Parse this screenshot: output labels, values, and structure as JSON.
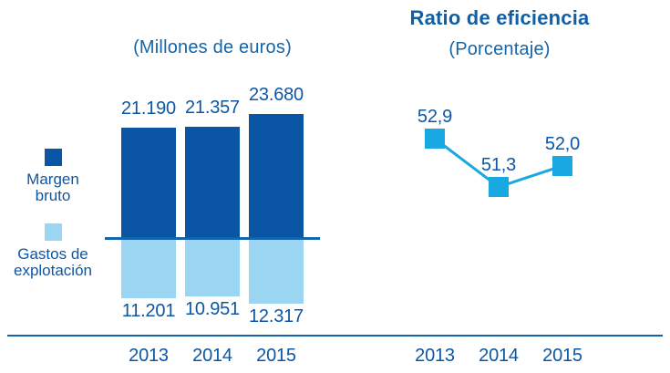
{
  "colors": {
    "margen_bruto": "#0B56A4",
    "gastos_explotacion": "#9AD6F2",
    "ratio_line": "#18A8E2",
    "text_blue": "#0B57A5",
    "title_blue": "#0E5FA8",
    "axis_blue": "#1464A5"
  },
  "left_chart": {
    "subtitle": "(Millones de euros)",
    "legend": [
      {
        "label": "Margen\nbruto",
        "color": "#0B56A4"
      },
      {
        "label": "Gastos de\nexplotación",
        "color": "#9AD6F2"
      }
    ]
  },
  "right_chart": {
    "title": "Ratio de eficiencia",
    "subtitle": "(Porcentaje)"
  },
  "chart_data": [
    {
      "type": "bar",
      "title": "(Millones de euros)",
      "categories": [
        "2013",
        "2014",
        "2015"
      ],
      "series": [
        {
          "name": "Margen bruto",
          "values": [
            21190,
            21357,
            23680
          ],
          "labels": [
            "21.190",
            "21.357",
            "23.680"
          ],
          "color": "#0B56A4",
          "direction": "above-zero-line"
        },
        {
          "name": "Gastos de explotación",
          "values": [
            11201,
            10951,
            12317
          ],
          "labels": [
            "11.201",
            "10.951",
            "12.317"
          ],
          "color": "#9AD6F2",
          "direction": "below-zero-line"
        }
      ],
      "legend_position": "left",
      "grid": false,
      "axis": "zero line across bars; shared bottom axis line under both charts"
    },
    {
      "type": "line",
      "title": "Ratio de eficiencia",
      "subtitle": "(Porcentaje)",
      "categories": [
        "2013",
        "2014",
        "2015"
      ],
      "series": [
        {
          "name": "Ratio de eficiencia",
          "values": [
            52.9,
            51.3,
            52.0
          ],
          "labels": [
            "52,9",
            "51,3",
            "52,0"
          ],
          "color": "#18A8E2",
          "marker": "square"
        }
      ],
      "grid": false,
      "ylim_hint": [
        50.5,
        53.5
      ]
    }
  ]
}
